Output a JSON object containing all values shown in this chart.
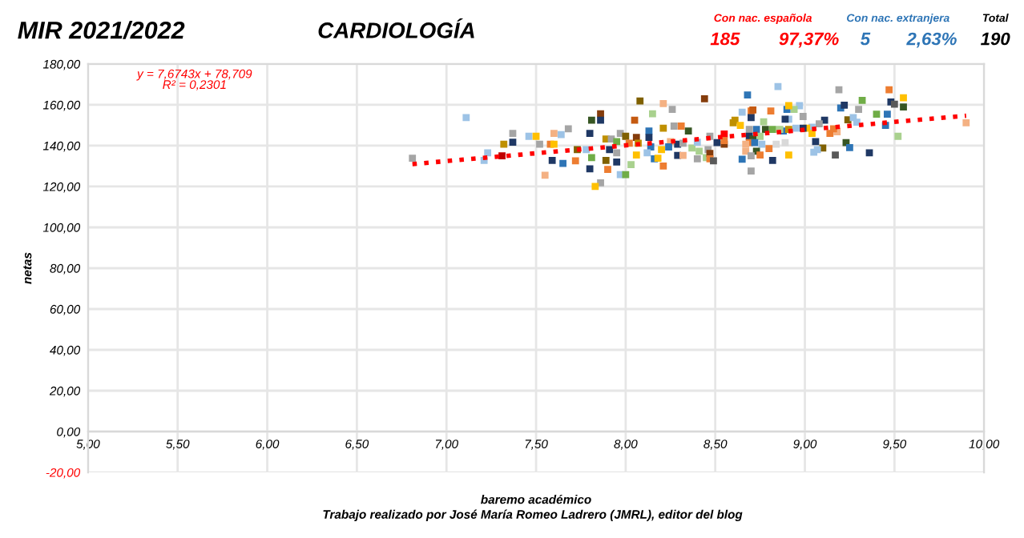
{
  "chart_data": {
    "type": "scatter",
    "title": "CARDIOLOGÍA",
    "xlabel": "baremo académico",
    "ylabel": "netas",
    "annotations": [
      "MIR 2021/2022",
      "Con nac. española",
      "185",
      "97,37%",
      "Con nac. extranjera",
      "5",
      "2,63%",
      "Total",
      "190",
      "y = 7,6743x + 78,709",
      "R² = 0,2301",
      "Trabajo realizado por José María Romeo Ladrero (JMRL), editor del blog"
    ],
    "xlim": [
      5,
      10
    ],
    "xticks": [
      {
        "value": 5,
        "label": "5,00"
      },
      {
        "value": 5.5,
        "label": "5,50"
      },
      {
        "value": 6,
        "label": "6,00"
      },
      {
        "value": 6.5,
        "label": "6,50"
      },
      {
        "value": 7,
        "label": "7,00"
      },
      {
        "value": 7.5,
        "label": "7,50"
      },
      {
        "value": 8,
        "label": "8,00"
      },
      {
        "value": 8.5,
        "label": "8,50"
      },
      {
        "value": 9,
        "label": "9,00"
      },
      {
        "value": 9.5,
        "label": "9,50"
      },
      {
        "value": 10,
        "label": "10,00"
      }
    ],
    "ylim": [
      -20,
      180
    ],
    "yticks": [
      {
        "value": -20,
        "label": "-20,00"
      },
      {
        "value": 0,
        "label": "0,00"
      },
      {
        "value": 20,
        "label": "20,00"
      },
      {
        "value": 40,
        "label": "40,00"
      },
      {
        "value": 60,
        "label": "60,00"
      },
      {
        "value": 80,
        "label": "80,00"
      },
      {
        "value": 100,
        "label": "100,00"
      },
      {
        "value": 120,
        "label": "120,00"
      },
      {
        "value": 140,
        "label": "140,00"
      },
      {
        "value": 160,
        "label": "160,00"
      },
      {
        "value": 180,
        "label": "180,00"
      }
    ],
    "grid": true,
    "series": [
      {
        "marker": "square",
        "x": [
          7.11,
          6.81,
          7.23,
          7.21,
          7.32,
          7.31,
          7.37,
          7.37,
          7.46,
          7.5,
          7.52,
          7.55,
          7.58,
          7.6,
          7.6,
          7.64,
          7.68,
          7.59,
          7.65,
          7.72,
          7.73,
          7.8,
          7.81,
          7.86,
          7.86,
          7.78,
          7.81,
          7.8,
          7.86,
          7.83,
          7.89,
          7.92,
          7.91,
          7.89,
          7.9,
          7.95,
          7.95,
          7.97,
          7.95,
          8.0,
          7.97,
          8.0,
          8.03,
          8.06,
          8.02,
          8.06,
          8.07,
          8.05,
          8.08,
          8.15,
          8.13,
          8.13,
          8.14,
          8.12,
          8.16,
          8.2,
          8.18,
          8.21,
          8.21,
          8.26,
          8.21,
          8.27,
          8.31,
          8.35,
          8.25,
          8.24,
          8.29,
          8.32,
          8.29,
          8.32,
          8.37,
          8.4,
          8.41,
          8.44,
          8.45,
          8.46,
          8.47,
          8.4,
          8.47,
          8.49,
          8.51,
          8.55,
          8.55,
          8.6,
          8.68,
          8.85,
          9.19,
          9.32,
          9.47,
          9.55,
          9.48,
          9.5,
          9.55,
          9.4,
          9.46,
          9.45,
          9.52,
          9.9,
          9.2,
          9.22,
          9.3,
          9.24,
          9.27,
          9.29,
          9.36,
          9.23,
          9.25,
          9.17,
          9.11,
          9.08,
          9.04,
          9.01,
          9.18,
          9.14,
          9.16,
          9.06,
          9.1,
          9.07,
          9.05,
          9.04,
          8.99,
          8.97,
          8.99,
          8.95,
          8.91,
          8.94,
          8.9,
          8.91,
          8.89,
          8.88,
          8.91,
          8.86,
          8.89,
          8.84,
          8.91,
          8.81,
          8.7,
          8.71,
          8.65,
          8.7,
          8.61,
          8.64,
          8.77,
          8.73,
          8.69,
          8.78,
          8.82,
          8.69,
          8.75,
          8.71,
          8.69,
          8.72,
          8.67,
          8.76,
          8.8,
          8.67,
          8.73,
          8.75,
          8.7,
          8.65,
          8.82,
          8.7,
          8.55,
          8.47
        ],
        "values": [
          153.8,
          133.9,
          136.5,
          132.8,
          140.7,
          135,
          146,
          141.7,
          144.6,
          144.6,
          140.7,
          125.5,
          140.7,
          140.7,
          146,
          145.4,
          148.3,
          132.8,
          131.3,
          132.6,
          138.1,
          146,
          152.5,
          155.6,
          152.5,
          138.1,
          134.2,
          128.7,
          121.8,
          120,
          143.3,
          143.3,
          138.1,
          132.8,
          128.4,
          132,
          136.5,
          146,
          142,
          144.6,
          125.8,
          125.8,
          130.7,
          135.4,
          141.2,
          144.1,
          141.2,
          152.5,
          161.9,
          155.6,
          147.2,
          144.1,
          139.4,
          136.5,
          133.6,
          138.1,
          133.9,
          130,
          160.6,
          157.8,
          148.6,
          149.6,
          149.6,
          147.2,
          142,
          139.4,
          140.7,
          141.2,
          135.2,
          135.2,
          138.9,
          141.7,
          137.3,
          163,
          134.2,
          138.1,
          136.2,
          133.6,
          133.6,
          132.6,
          141.5,
          140.7,
          145.7,
          151.2,
          164.8,
          169,
          167.4,
          162.2,
          167.4,
          163.5,
          161.4,
          160.3,
          159,
          155.4,
          155.4,
          149.9,
          144.6,
          151.2,
          158.5,
          159.8,
          157.8,
          152.7,
          153.8,
          151.5,
          136.5,
          141.5,
          139.1,
          135.4,
          152.5,
          150.7,
          149.1,
          148.6,
          146.8,
          146,
          148.3,
          142,
          138.9,
          138.1,
          136.8,
          146,
          154.3,
          159.6,
          148.6,
          148.6,
          153,
          157.8,
          157.8,
          159.6,
          153,
          147.2,
          148,
          148,
          141.5,
          140.7,
          135.4,
          157,
          157,
          157.5,
          156.4,
          153.8,
          152.5,
          149.9,
          151.7,
          148,
          148,
          148,
          148,
          144.6,
          144.6,
          143.3,
          141.5,
          141.5,
          140.7,
          140.7,
          138.6,
          137.3,
          137.3,
          135.4,
          135,
          133.4,
          132.8,
          127.6,
          142.5,
          144.6
        ],
        "colors": [
          "#9dc3e6",
          "#a5a5a5",
          "#9dc3e6",
          "#9dc3e6",
          "#bf9000",
          "#c00000",
          "#a5a5a5",
          "#1f3864",
          "#9dc3e6",
          "#ffc000",
          "#a5a5a5",
          "#f4b183",
          "#ed7d31",
          "#ffc000",
          "#f4b183",
          "#9dc3e6",
          "#a5a5a5",
          "#1f3864",
          "#2e75b6",
          "#ed7d31",
          "#7f6000",
          "#1f3864",
          "#375623",
          "#843c0c",
          "#1f3864",
          "#9dc3e6",
          "#70ad47",
          "#1f3864",
          "#a5a5a5",
          "#ffc000",
          "#bf9000",
          "#a5a5a5",
          "#1f3864",
          "#7f6000",
          "#ed7d31",
          "#1f3864",
          "#a5a5a5",
          "#a5a5a5",
          "#70ad47",
          "#7f6000",
          "#9dc3e6",
          "#70ad47",
          "#a9d18e",
          "#ffc000",
          "#ed7d31",
          "#843c0c",
          "#bf9000",
          "#c55a11",
          "#7f6000",
          "#a9d18e",
          "#2e75b6",
          "#1f3864",
          "#2e75b6",
          "#9dc3e6",
          "#2e75b6",
          "#ffc000",
          "#ffc000",
          "#ed7d31",
          "#f4b183",
          "#a5a5a5",
          "#bf9000",
          "#a5a5a5",
          "#ed7d31",
          "#375623",
          "#f4b183",
          "#2e75b6",
          "#1f3864",
          "#a5a5a5",
          "#1f3864",
          "#f4b183",
          "#a9d18e",
          "#9dc3e6",
          "#a9d18e",
          "#843c0c",
          "#a9d18e",
          "#a5a5a5",
          "#843c0c",
          "#a5a5a5",
          "#ed7d31",
          "#595959",
          "#1f3864",
          "#843c0c",
          "#ff0000",
          "#bf9000",
          "#2e75b6",
          "#9dc3e6",
          "#a5a5a5",
          "#70ad47",
          "#ed7d31",
          "#ffc000",
          "#1f3864",
          "#595959",
          "#375623",
          "#70ad47",
          "#2e75b6",
          "#2e75b6",
          "#a9d18e",
          "#f4b183",
          "#2e75b6",
          "#1f3864",
          "#a5a5a5",
          "#7f6000",
          "#9dc3e6",
          "#9dc3e6",
          "#1f3864",
          "#375623",
          "#2e75b6",
          "#595959",
          "#1f3864",
          "#a5a5a5",
          "#9dc3e6",
          "#ffc000",
          "#f4b183",
          "#ed7d31",
          "#ed7d31",
          "#1f3864",
          "#7f6000",
          "#9dc3e6",
          "#9dc3e6",
          "#ffc000",
          "#a5a5a5",
          "#9dc3e6",
          "#1f3864",
          "#9dc3e6",
          "#9dc3e6",
          "#a9d18e",
          "#2e75b6",
          "#ffc000",
          "#1f3864",
          "#2e75b6",
          "#bf9000",
          "#a9d18e",
          "#d9d9d9",
          "#d9d9d9",
          "#ffc000",
          "#ed7d31",
          "#ed7d31",
          "#c55a11",
          "#9dc3e6",
          "#1f3864",
          "#bf9000",
          "#ffc000",
          "#a9d18e",
          "#2e75b6",
          "#a5a5a5",
          "#375623",
          "#70ad47",
          "#1f3864",
          "#a9d18e",
          "#375623",
          "#ed7d31",
          "#2e75b6",
          "#f4b183",
          "#9dc3e6",
          "#ed7d31",
          "#f4b183",
          "#375623",
          "#ed7d31",
          "#a5a5a5",
          "#2e75b6",
          "#1f3864",
          "#a5a5a5",
          "#ed7d31",
          "#a5a5a5"
        ]
      },
      {
        "type": "line",
        "x": [
          6.81,
          9.9
        ],
        "values": [
          131.0,
          154.7
        ],
        "color": "#ff0000",
        "line_style": "dotted"
      }
    ]
  }
}
